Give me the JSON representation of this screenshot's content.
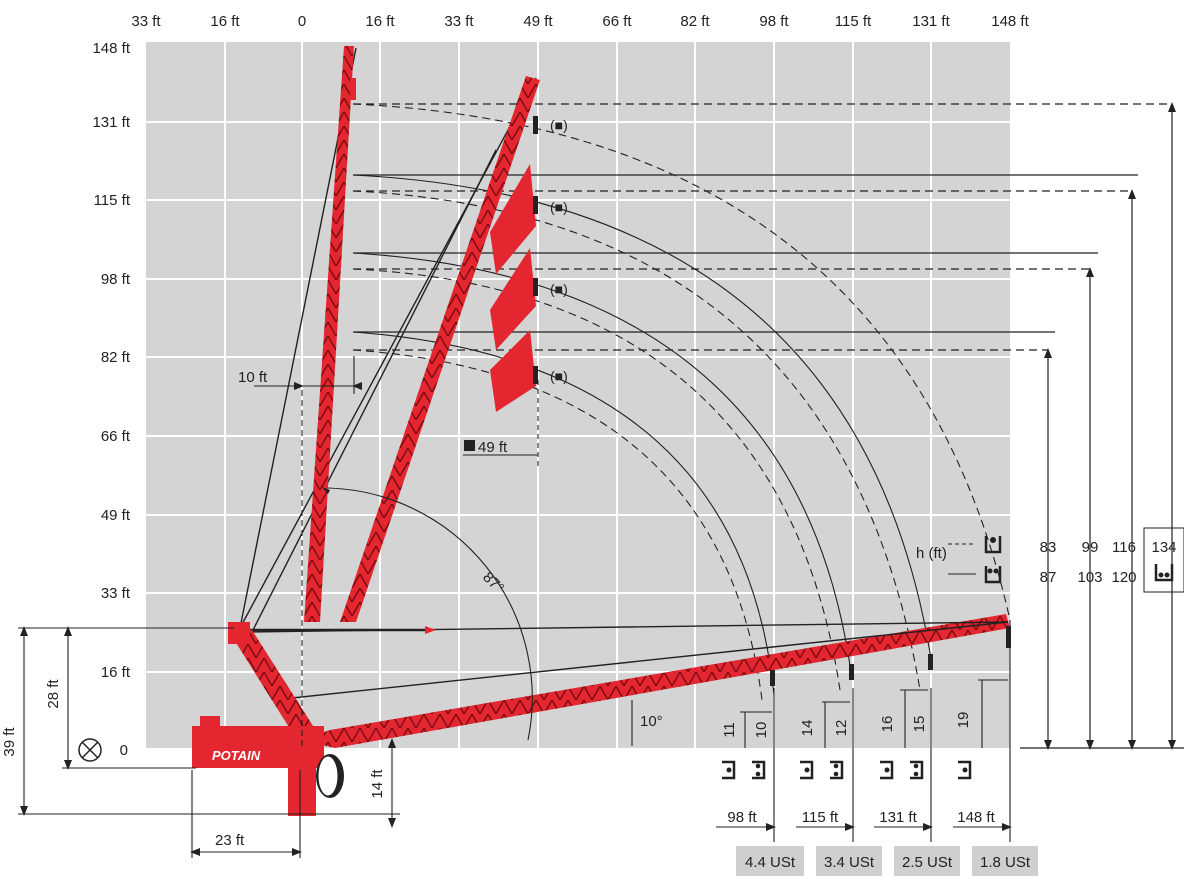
{
  "top_axis": [
    "33 ft",
    "16 ft",
    "0",
    "16 ft",
    "33 ft",
    "49 ft",
    "66 ft",
    "82 ft",
    "98 ft",
    "115 ft",
    "131 ft",
    "148 ft"
  ],
  "left_axis": [
    "148 ft",
    "131 ft",
    "115 ft",
    "98 ft",
    "82 ft",
    "66 ft",
    "49 ft",
    "33 ft",
    "16 ft",
    "0"
  ],
  "dims": {
    "d10ft": "10 ft",
    "d49ft": "49 ft",
    "d39ft": "39 ft",
    "d28ft": "28 ft",
    "d23ft": "23 ft",
    "d14ft": "14 ft",
    "angle87": "87°",
    "angle10": "10°",
    "h_label": "h (ft)"
  },
  "brand": "POTAIN",
  "height_table": {
    "row1": [
      "83",
      "99",
      "116",
      "134"
    ],
    "row2": [
      "87",
      "103",
      "120"
    ]
  },
  "hook_heights": [
    {
      "a": "11",
      "b": "10"
    },
    {
      "a": "14",
      "b": "12"
    },
    {
      "a": "16",
      "b": "15"
    },
    {
      "a": "19",
      "b": ""
    }
  ],
  "radii": [
    "98 ft",
    "115 ft",
    "131 ft",
    "148 ft"
  ],
  "ust": [
    "4.4 USt",
    "3.4 USt",
    "2.5 USt",
    "1.8 USt"
  ],
  "colors": {
    "crane_red": "#e3262f",
    "grid_bg": "#d4d4d4",
    "ust_bg": "#cfcfcf"
  }
}
